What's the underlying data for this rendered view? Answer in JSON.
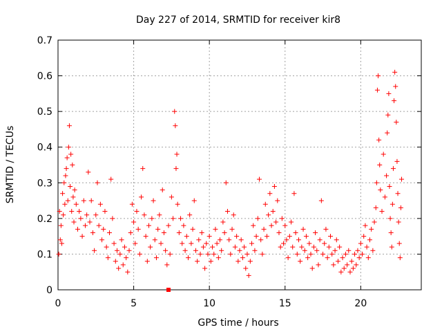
{
  "chart_data": {
    "type": "scatter",
    "title": "Day 227 of 2014, SRMTID for receiver kir8",
    "xlabel": "GPS time / hours",
    "ylabel": "SRMTID / TECUs",
    "xlim": [
      0,
      24
    ],
    "ylim": [
      0,
      0.7
    ],
    "xticks": [
      0,
      5,
      10,
      15,
      20
    ],
    "yticks": [
      0,
      0.1,
      0.2,
      0.3,
      0.4,
      0.5,
      0.6,
      0.7
    ],
    "grid": true,
    "marker": "+",
    "color": "#ff0000",
    "series": [
      {
        "name": "SRMTID",
        "points": [
          [
            0.05,
            0.1
          ],
          [
            0.1,
            0.22
          ],
          [
            0.15,
            0.14
          ],
          [
            0.2,
            0.18
          ],
          [
            0.25,
            0.13
          ],
          [
            0.3,
            0.27
          ],
          [
            0.35,
            0.21
          ],
          [
            0.4,
            0.3
          ],
          [
            0.45,
            0.24
          ],
          [
            0.5,
            0.32
          ],
          [
            0.55,
            0.34
          ],
          [
            0.6,
            0.37
          ],
          [
            0.65,
            0.25
          ],
          [
            0.7,
            0.4
          ],
          [
            0.75,
            0.46
          ],
          [
            0.8,
            0.29
          ],
          [
            0.85,
            0.38
          ],
          [
            0.9,
            0.22
          ],
          [
            0.95,
            0.35
          ],
          [
            1.0,
            0.26
          ],
          [
            1.05,
            0.19
          ],
          [
            1.1,
            0.28
          ],
          [
            1.2,
            0.24
          ],
          [
            1.3,
            0.17
          ],
          [
            1.4,
            0.22
          ],
          [
            1.5,
            0.2
          ],
          [
            1.6,
            0.15
          ],
          [
            1.7,
            0.25
          ],
          [
            1.8,
            0.18
          ],
          [
            1.9,
            0.21
          ],
          [
            2.0,
            0.33
          ],
          [
            2.1,
            0.19
          ],
          [
            2.2,
            0.25
          ],
          [
            2.3,
            0.16
          ],
          [
            2.4,
            0.11
          ],
          [
            2.5,
            0.21
          ],
          [
            2.6,
            0.3
          ],
          [
            2.7,
            0.18
          ],
          [
            2.8,
            0.24
          ],
          [
            2.9,
            0.14
          ],
          [
            3.0,
            0.17
          ],
          [
            3.1,
            0.22
          ],
          [
            3.2,
            0.12
          ],
          [
            3.3,
            0.09
          ],
          [
            3.4,
            0.16
          ],
          [
            3.5,
            0.31
          ],
          [
            3.6,
            0.2
          ],
          [
            3.7,
            0.13
          ],
          [
            3.8,
            0.08
          ],
          [
            3.9,
            0.11
          ],
          [
            4.0,
            0.06
          ],
          [
            4.1,
            0.1
          ],
          [
            4.2,
            0.14
          ],
          [
            4.3,
            0.07
          ],
          [
            4.4,
            0.12
          ],
          [
            4.5,
            0.09
          ],
          [
            4.6,
            0.05
          ],
          [
            4.7,
            0.11
          ],
          [
            4.8,
            0.16
          ],
          [
            4.9,
            0.24
          ],
          [
            5.0,
            0.19
          ],
          [
            5.1,
            0.13
          ],
          [
            5.2,
            0.22
          ],
          [
            5.3,
            0.17
          ],
          [
            5.4,
            0.1
          ],
          [
            5.5,
            0.26
          ],
          [
            5.6,
            0.34
          ],
          [
            5.7,
            0.21
          ],
          [
            5.8,
            0.15
          ],
          [
            5.9,
            0.08
          ],
          [
            6.0,
            0.18
          ],
          [
            6.1,
            0.12
          ],
          [
            6.2,
            0.2
          ],
          [
            6.3,
            0.25
          ],
          [
            6.4,
            0.14
          ],
          [
            6.5,
            0.09
          ],
          [
            6.6,
            0.17
          ],
          [
            6.7,
            0.21
          ],
          [
            6.8,
            0.13
          ],
          [
            6.9,
            0.28
          ],
          [
            7.0,
            0.16
          ],
          [
            7.1,
            0.11
          ],
          [
            7.2,
            0.07
          ],
          [
            7.3,
            0.18
          ],
          [
            7.4,
            0.1
          ],
          [
            7.5,
            0.26
          ],
          [
            7.6,
            0.2
          ],
          [
            7.7,
            0.5
          ],
          [
            7.75,
            0.46
          ],
          [
            7.8,
            0.34
          ],
          [
            7.85,
            0.38
          ],
          [
            7.9,
            0.24
          ],
          [
            8.0,
            0.16
          ],
          [
            8.1,
            0.2
          ],
          [
            8.2,
            0.13
          ],
          [
            8.3,
            0.18
          ],
          [
            8.4,
            0.11
          ],
          [
            8.5,
            0.15
          ],
          [
            8.6,
            0.09
          ],
          [
            8.7,
            0.21
          ],
          [
            8.8,
            0.13
          ],
          [
            8.9,
            0.17
          ],
          [
            9.0,
            0.25
          ],
          [
            9.1,
            0.11
          ],
          [
            9.2,
            0.08
          ],
          [
            9.3,
            0.14
          ],
          [
            9.4,
            0.1
          ],
          [
            9.5,
            0.16
          ],
          [
            9.6,
            0.12
          ],
          [
            9.7,
            0.06
          ],
          [
            9.8,
            0.13
          ],
          [
            9.9,
            0.1
          ],
          [
            10.0,
            0.15
          ],
          [
            10.1,
            0.08
          ],
          [
            10.2,
            0.12
          ],
          [
            10.3,
            0.1
          ],
          [
            10.4,
            0.17
          ],
          [
            10.5,
            0.13
          ],
          [
            10.6,
            0.09
          ],
          [
            10.7,
            0.14
          ],
          [
            10.8,
            0.11
          ],
          [
            10.9,
            0.19
          ],
          [
            11.0,
            0.16
          ],
          [
            11.1,
            0.3
          ],
          [
            11.2,
            0.22
          ],
          [
            11.3,
            0.14
          ],
          [
            11.4,
            0.1
          ],
          [
            11.5,
            0.17
          ],
          [
            11.6,
            0.21
          ],
          [
            11.7,
            0.12
          ],
          [
            11.8,
            0.15
          ],
          [
            11.9,
            0.08
          ],
          [
            12.0,
            0.11
          ],
          [
            12.1,
            0.14
          ],
          [
            12.2,
            0.09
          ],
          [
            12.3,
            0.12
          ],
          [
            12.4,
            0.06
          ],
          [
            12.5,
            0.1
          ],
          [
            12.6,
            0.04
          ],
          [
            12.7,
            0.08
          ],
          [
            12.8,
            0.13
          ],
          [
            12.9,
            0.18
          ],
          [
            13.0,
            0.11
          ],
          [
            13.1,
            0.15
          ],
          [
            13.2,
            0.2
          ],
          [
            13.3,
            0.31
          ],
          [
            13.4,
            0.14
          ],
          [
            13.5,
            0.1
          ],
          [
            13.6,
            0.17
          ],
          [
            13.7,
            0.24
          ],
          [
            13.8,
            0.15
          ],
          [
            13.9,
            0.21
          ],
          [
            14.0,
            0.27
          ],
          [
            14.1,
            0.18
          ],
          [
            14.2,
            0.22
          ],
          [
            14.3,
            0.29
          ],
          [
            14.4,
            0.19
          ],
          [
            14.5,
            0.25
          ],
          [
            14.6,
            0.16
          ],
          [
            14.7,
            0.12
          ],
          [
            14.8,
            0.2
          ],
          [
            14.9,
            0.13
          ],
          [
            15.0,
            0.18
          ],
          [
            15.1,
            0.14
          ],
          [
            15.2,
            0.09
          ],
          [
            15.3,
            0.15
          ],
          [
            15.4,
            0.19
          ],
          [
            15.5,
            0.12
          ],
          [
            15.6,
            0.27
          ],
          [
            15.7,
            0.16
          ],
          [
            15.8,
            0.1
          ],
          [
            15.9,
            0.14
          ],
          [
            16.0,
            0.08
          ],
          [
            16.1,
            0.12
          ],
          [
            16.2,
            0.17
          ],
          [
            16.3,
            0.11
          ],
          [
            16.4,
            0.15
          ],
          [
            16.5,
            0.09
          ],
          [
            16.6,
            0.13
          ],
          [
            16.7,
            0.1
          ],
          [
            16.8,
            0.06
          ],
          [
            16.9,
            0.12
          ],
          [
            17.0,
            0.16
          ],
          [
            17.1,
            0.11
          ],
          [
            17.2,
            0.07
          ],
          [
            17.3,
            0.14
          ],
          [
            17.4,
            0.25
          ],
          [
            17.5,
            0.1
          ],
          [
            17.6,
            0.13
          ],
          [
            17.7,
            0.17
          ],
          [
            17.8,
            0.09
          ],
          [
            17.9,
            0.12
          ],
          [
            18.0,
            0.15
          ],
          [
            18.1,
            0.1
          ],
          [
            18.2,
            0.07
          ],
          [
            18.3,
            0.11
          ],
          [
            18.4,
            0.14
          ],
          [
            18.5,
            0.08
          ],
          [
            18.6,
            0.12
          ],
          [
            18.7,
            0.05
          ],
          [
            18.8,
            0.09
          ],
          [
            18.9,
            0.06
          ],
          [
            19.0,
            0.1
          ],
          [
            19.1,
            0.07
          ],
          [
            19.2,
            0.11
          ],
          [
            19.3,
            0.05
          ],
          [
            19.4,
            0.08
          ],
          [
            19.5,
            0.06
          ],
          [
            19.6,
            0.1
          ],
          [
            19.7,
            0.07
          ],
          [
            19.8,
            0.11
          ],
          [
            19.9,
            0.09
          ],
          [
            20.0,
            0.13
          ],
          [
            20.1,
            0.1
          ],
          [
            20.2,
            0.15
          ],
          [
            20.3,
            0.18
          ],
          [
            20.4,
            0.12
          ],
          [
            20.5,
            0.09
          ],
          [
            20.6,
            0.14
          ],
          [
            20.7,
            0.17
          ],
          [
            20.8,
            0.11
          ],
          [
            20.9,
            0.19
          ],
          [
            21.0,
            0.23
          ],
          [
            21.05,
            0.3
          ],
          [
            21.1,
            0.56
          ],
          [
            21.15,
            0.6
          ],
          [
            21.2,
            0.42
          ],
          [
            21.25,
            0.35
          ],
          [
            21.3,
            0.28
          ],
          [
            21.4,
            0.22
          ],
          [
            21.5,
            0.38
          ],
          [
            21.6,
            0.26
          ],
          [
            21.7,
            0.32
          ],
          [
            21.75,
            0.44
          ],
          [
            21.8,
            0.49
          ],
          [
            21.85,
            0.55
          ],
          [
            21.9,
            0.29
          ],
          [
            21.95,
            0.2
          ],
          [
            22.0,
            0.16
          ],
          [
            22.05,
            0.12
          ],
          [
            22.1,
            0.24
          ],
          [
            22.15,
            0.34
          ],
          [
            22.2,
            0.53
          ],
          [
            22.25,
            0.61
          ],
          [
            22.3,
            0.57
          ],
          [
            22.35,
            0.47
          ],
          [
            22.4,
            0.36
          ],
          [
            22.45,
            0.27
          ],
          [
            22.5,
            0.19
          ],
          [
            22.55,
            0.13
          ],
          [
            22.6,
            0.09
          ],
          [
            22.65,
            0.23
          ],
          [
            22.7,
            0.31
          ]
        ]
      }
    ],
    "annotations": [
      {
        "x": 7.3,
        "y": 0.0,
        "marker": "square",
        "color": "#ff0000"
      }
    ]
  }
}
